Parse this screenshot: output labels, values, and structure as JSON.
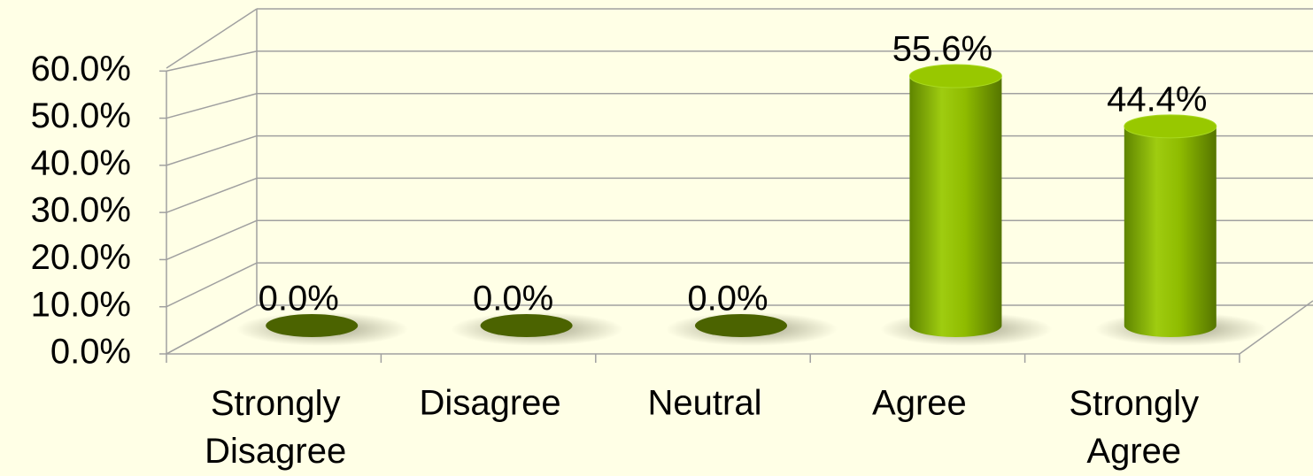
{
  "chart_data": {
    "type": "cylinder3d",
    "categories": [
      "Strongly Disagree",
      "Disagree",
      "Neutral",
      "Agree",
      "Strongly Agree"
    ],
    "values": [
      0,
      0,
      0,
      55.6,
      44.4
    ],
    "value_labels": [
      "0.0%",
      "0.0%",
      "0.0%",
      "55.6%",
      "44.4%"
    ],
    "color": "#8fbc00",
    "ylim": [
      0,
      70
    ],
    "yticks": [
      {
        "value": 0,
        "label": "0.0%"
      },
      {
        "value": 10,
        "label": "10.0%"
      },
      {
        "value": 20,
        "label": "20.0%"
      },
      {
        "value": 30,
        "label": "30.0%"
      },
      {
        "value": 40,
        "label": "40.0%"
      },
      {
        "value": 50,
        "label": "50.0%"
      },
      {
        "value": 60,
        "label": "60.0%"
      }
    ],
    "grid": true
  }
}
